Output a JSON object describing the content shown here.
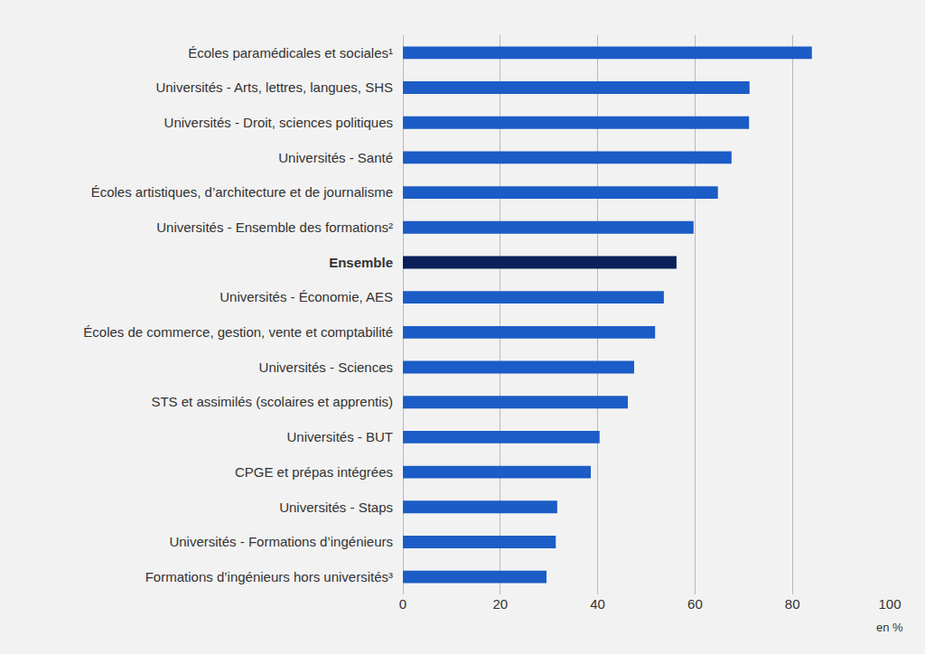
{
  "chart_data": {
    "type": "bar",
    "orientation": "horizontal",
    "categories": [
      "Écoles paramédicales et sociales¹",
      "Universités - Arts, lettres, langues, SHS",
      "Universités - Droit, sciences politiques",
      "Universités - Santé",
      "Écoles artistiques, d’architecture et de journalisme",
      "Universités - Ensemble des formations²",
      "Ensemble",
      "Universités - Économie, AES",
      "Écoles de commerce, gestion, vente et comptabilité",
      "Universités - Sciences",
      "STS et assimilés (scolaires et apprentis)",
      "Universités - BUT",
      "CPGE et prépas intégrées",
      "Universités - Staps",
      "Universités - Formations d’ingénieurs",
      "Formations d’ingénieurs hors universités³"
    ],
    "values": [
      84.0,
      71.2,
      71.1,
      67.5,
      64.7,
      59.7,
      56.2,
      53.6,
      51.8,
      47.5,
      46.2,
      40.4,
      38.6,
      31.7,
      31.4,
      29.5
    ],
    "colors": [
      "#1b5cc6",
      "#1b5cc6",
      "#1b5cc6",
      "#1b5cc6",
      "#1b5cc6",
      "#1b5cc6",
      "#0b1f5a",
      "#1b5cc6",
      "#1b5cc6",
      "#1b5cc6",
      "#1b5cc6",
      "#1b5cc6",
      "#1b5cc6",
      "#1b5cc6",
      "#1b5cc6",
      "#1b5cc6"
    ],
    "xlabel": "en %",
    "xlim": [
      0,
      100
    ],
    "xticks": [
      0,
      20,
      40,
      60,
      80,
      100
    ],
    "grid": true
  }
}
